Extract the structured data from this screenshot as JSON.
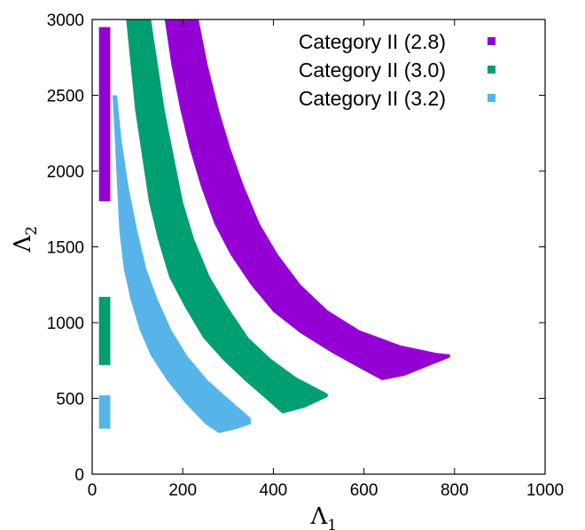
{
  "chart_data": {
    "type": "scatter",
    "title": "",
    "xlabel": "Λ",
    "xlabel_sub": "1",
    "ylabel": "Λ",
    "ylabel_sub": "2",
    "xlim": [
      0,
      1000
    ],
    "ylim": [
      0,
      3000
    ],
    "xticks": [
      "0",
      "200",
      "400",
      "600",
      "800",
      "1000"
    ],
    "yticks": [
      "0",
      "500",
      "1000",
      "1500",
      "2000",
      "2500",
      "3000"
    ],
    "grid": false,
    "legend_position": "top-right",
    "series": [
      {
        "name": "Category II (2.8)",
        "color": "#9400d3",
        "regions": [
          {
            "shape": "band",
            "outer": [
              [
                235,
                3000
              ],
              [
                255,
                2700
              ],
              [
                280,
                2400
              ],
              [
                305,
                2150
              ],
              [
                335,
                1900
              ],
              [
                370,
                1650
              ],
              [
                410,
                1450
              ],
              [
                460,
                1250
              ],
              [
                520,
                1080
              ],
              [
                590,
                950
              ],
              [
                680,
                850
              ],
              [
                760,
                800
              ],
              [
                790,
                790
              ]
            ],
            "inner": [
              [
                160,
                3000
              ],
              [
                175,
                2700
              ],
              [
                195,
                2400
              ],
              [
                215,
                2150
              ],
              [
                240,
                1900
              ],
              [
                270,
                1650
              ],
              [
                305,
                1450
              ],
              [
                350,
                1250
              ],
              [
                400,
                1070
              ],
              [
                460,
                930
              ],
              [
                530,
                800
              ],
              [
                590,
                700
              ],
              [
                640,
                620
              ],
              [
                690,
                650
              ],
              [
                790,
                770
              ]
            ]
          },
          {
            "shape": "rect",
            "x": [
              15,
              40
            ],
            "y": [
              1800,
              2950
            ]
          }
        ]
      },
      {
        "name": "Category II (3.0)",
        "color": "#009e73",
        "regions": [
          {
            "shape": "band",
            "outer": [
              [
                130,
                3000
              ],
              [
                145,
                2700
              ],
              [
                160,
                2400
              ],
              [
                180,
                2100
              ],
              [
                200,
                1800
              ],
              [
                225,
                1550
              ],
              [
                260,
                1300
              ],
              [
                300,
                1100
              ],
              [
                345,
                900
              ],
              [
                395,
                760
              ],
              [
                450,
                640
              ],
              [
                520,
                530
              ]
            ],
            "inner": [
              [
                75,
                3000
              ],
              [
                85,
                2700
              ],
              [
                95,
                2400
              ],
              [
                110,
                2100
              ],
              [
                125,
                1800
              ],
              [
                145,
                1550
              ],
              [
                170,
                1300
              ],
              [
                205,
                1100
              ],
              [
                245,
                900
              ],
              [
                290,
                750
              ],
              [
                340,
                610
              ],
              [
                390,
                480
              ],
              [
                420,
                400
              ],
              [
                470,
                440
              ],
              [
                520,
                510
              ]
            ]
          },
          {
            "shape": "rect",
            "x": [
              15,
              40
            ],
            "y": [
              720,
              1170
            ]
          }
        ]
      },
      {
        "name": "Category II (3.2)",
        "color": "#56b4e9",
        "regions": [
          {
            "shape": "band",
            "outer": [
              [
                55,
                2500
              ],
              [
                65,
                2200
              ],
              [
                80,
                1900
              ],
              [
                100,
                1600
              ],
              [
                120,
                1350
              ],
              [
                145,
                1150
              ],
              [
                175,
                950
              ],
              [
                210,
                780
              ],
              [
                255,
                620
              ],
              [
                300,
                500
              ],
              [
                350,
                370
              ]
            ],
            "inner": [
              [
                45,
                2500
              ],
              [
                50,
                2200
              ],
              [
                55,
                1900
              ],
              [
                60,
                1600
              ],
              [
                70,
                1350
              ],
              [
                85,
                1150
              ],
              [
                105,
                950
              ],
              [
                130,
                780
              ],
              [
                165,
                620
              ],
              [
                205,
                470
              ],
              [
                250,
                330
              ],
              [
                280,
                270
              ],
              [
                320,
                300
              ],
              [
                350,
                330
              ]
            ]
          },
          {
            "shape": "rect",
            "x": [
              15,
              40
            ],
            "y": [
              300,
              520
            ]
          }
        ]
      }
    ]
  }
}
